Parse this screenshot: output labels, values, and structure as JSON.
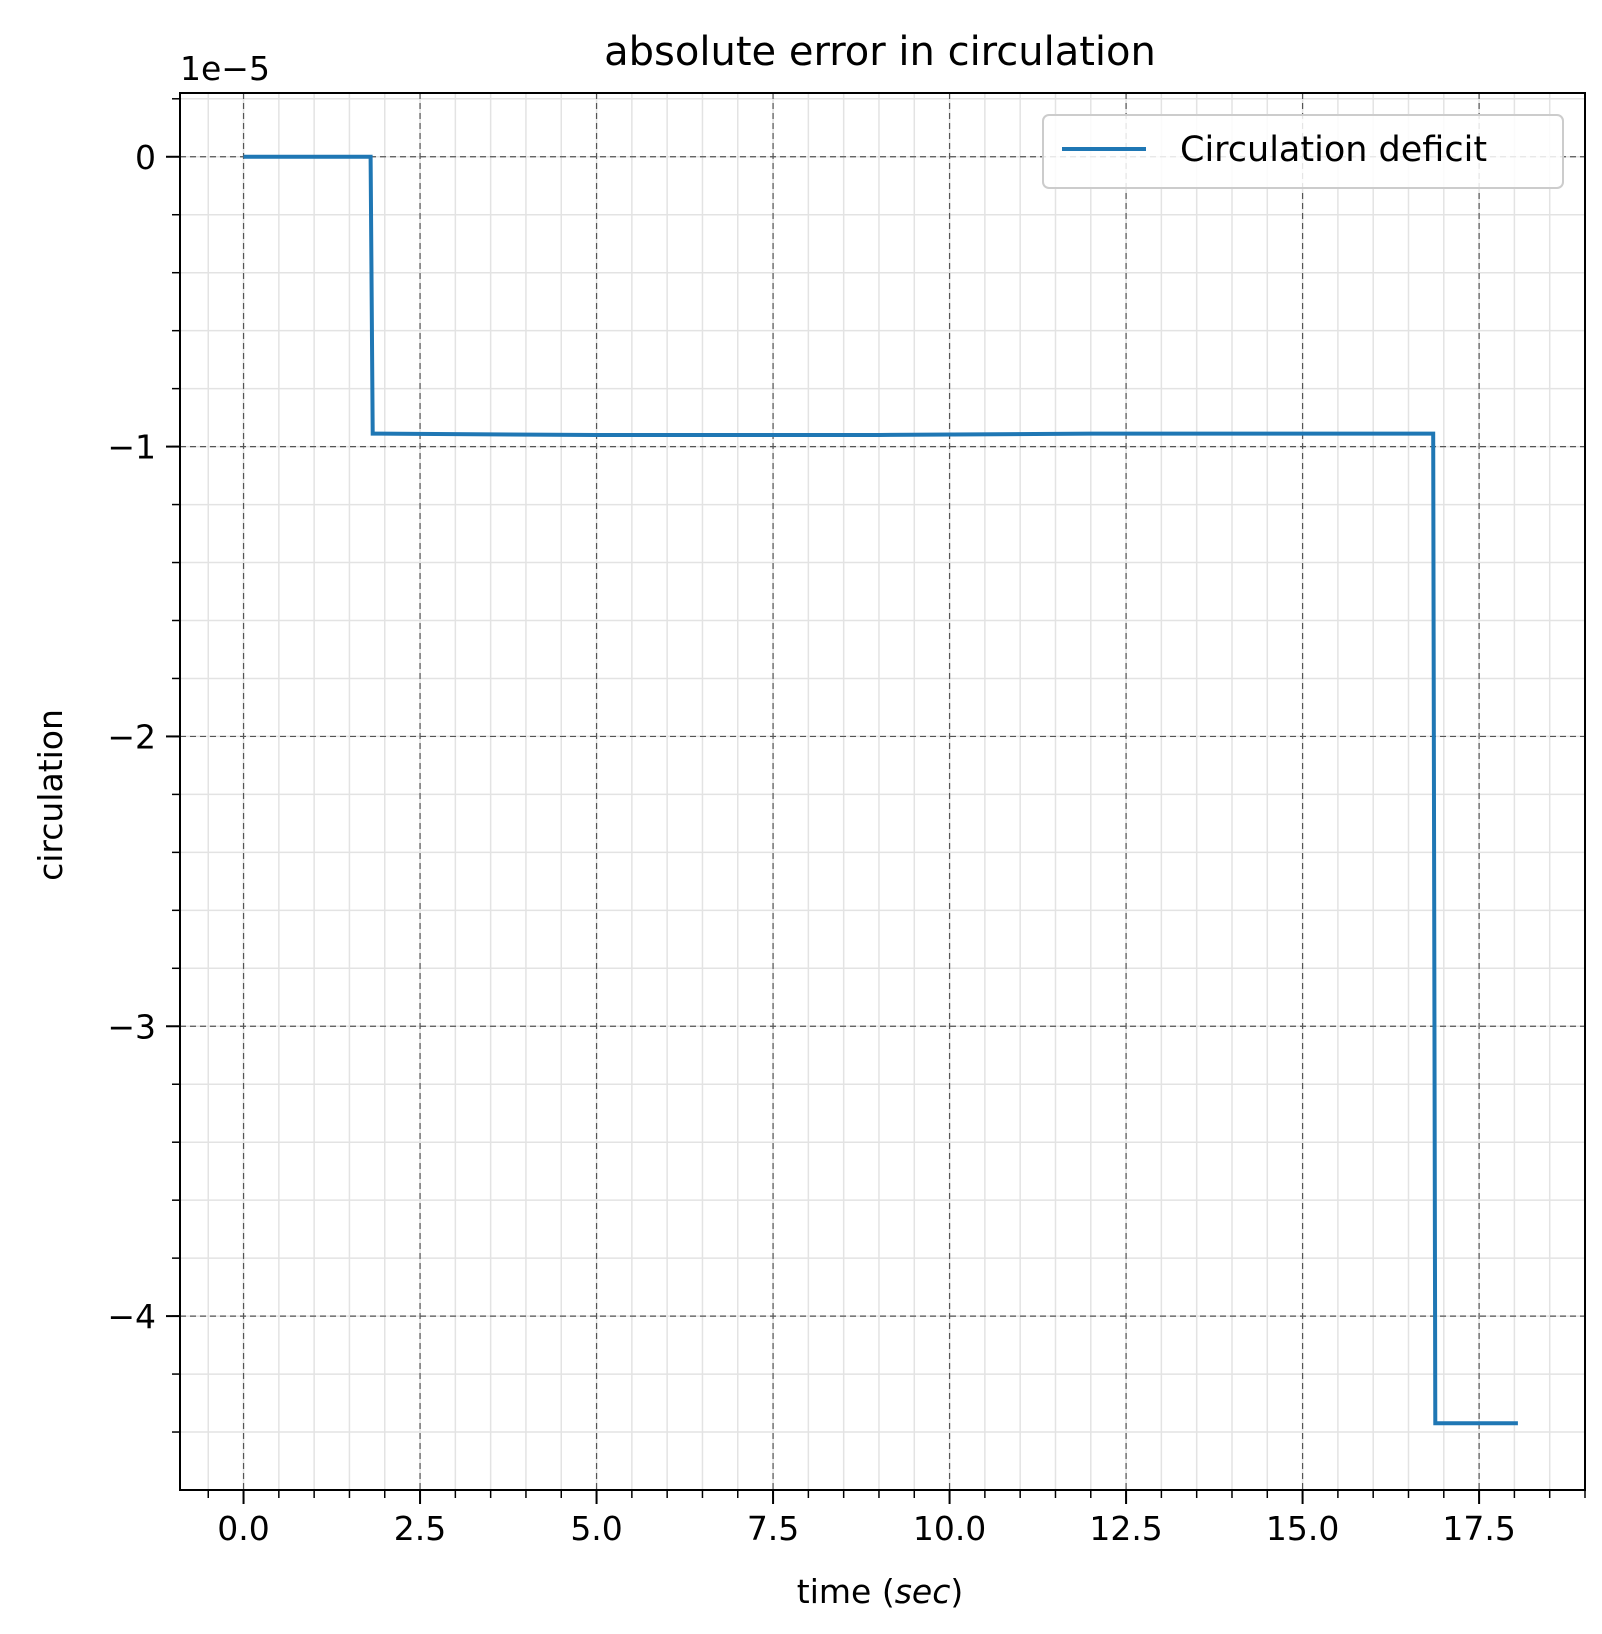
{
  "chart_data": {
    "type": "line",
    "title": "absolute error in circulation",
    "xlabel_text": "time (",
    "xlabel_italic": "sec",
    "xlabel_close": ")",
    "ylabel": "circulation",
    "y_offset_label": "1e−5",
    "xlim": [
      -0.9,
      19.0
    ],
    "ylim": [
      -4.6,
      0.22
    ],
    "x_ticks": [
      0.0,
      2.5,
      5.0,
      7.5,
      10.0,
      12.5,
      15.0,
      17.5
    ],
    "x_tick_labels": [
      "0.0",
      "2.5",
      "5.0",
      "7.5",
      "10.0",
      "12.5",
      "15.0",
      "17.5"
    ],
    "y_ticks": [
      0,
      -1,
      -2,
      -3,
      -4
    ],
    "y_tick_labels": [
      "0",
      "−1",
      "−2",
      "−3",
      "−4"
    ],
    "x_minor_step": 0.5,
    "y_minor_step": 0.2,
    "grid": true,
    "legend_position": "top-right",
    "series": [
      {
        "name": "Circulation deficit",
        "color": "#1f77b4",
        "x": [
          0.0,
          0.7,
          1.8,
          1.83,
          5.0,
          9.0,
          12.0,
          16.85,
          16.88,
          18.05
        ],
        "y": [
          0.0,
          0.0,
          0.0,
          -0.955,
          -0.96,
          -0.96,
          -0.955,
          -0.955,
          -4.37,
          -4.37
        ]
      }
    ]
  }
}
